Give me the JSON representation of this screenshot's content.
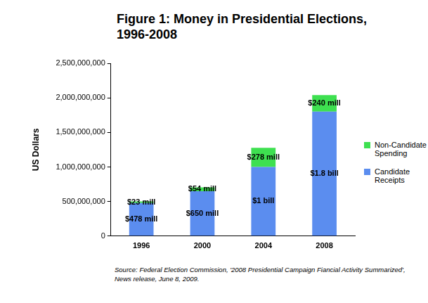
{
  "chart_data": {
    "type": "bar",
    "title": "Figure 1: Money in Presidential Elections, 1996-2008",
    "y_label": "US Dollars",
    "source": "Source:  Federal Election Commission, '2008 Presidential Campaign Fiancial Activity Summarized', News release, June 8, 2009.",
    "categories": [
      "1996",
      "2000",
      "2004",
      "2008"
    ],
    "series": [
      {
        "name": "Candidate Receipts",
        "color": "#5b8def",
        "values": [
          478000000,
          650000000,
          1000000000,
          1800000000
        ],
        "value_labels": [
          "$478 mill",
          "$650 mill",
          "$1 bill",
          "$1.8 bill"
        ]
      },
      {
        "name": "Non-Candidate Spending",
        "color": "#3ee050",
        "values": [
          23000000,
          54000000,
          278000000,
          240000000
        ],
        "value_labels": [
          "$23 mill",
          "$54 mill",
          "$278 mill",
          "$240 mill"
        ]
      }
    ],
    "stacked": true,
    "data_labels": true,
    "legend": "right",
    "grid": false,
    "ylim": [
      0,
      2500000000
    ],
    "yticks": [
      0,
      {
        "value": 500000000,
        "label": "500,000,000"
      },
      {
        "value": 1000000000,
        "label": "1,000,000,000"
      },
      {
        "value": 1500000000,
        "label": "1,500,000,000"
      },
      {
        "value": 2000000000,
        "label": "2,000,000,000"
      },
      {
        "value": 2500000000,
        "label": "2,500,000,000"
      }
    ]
  }
}
